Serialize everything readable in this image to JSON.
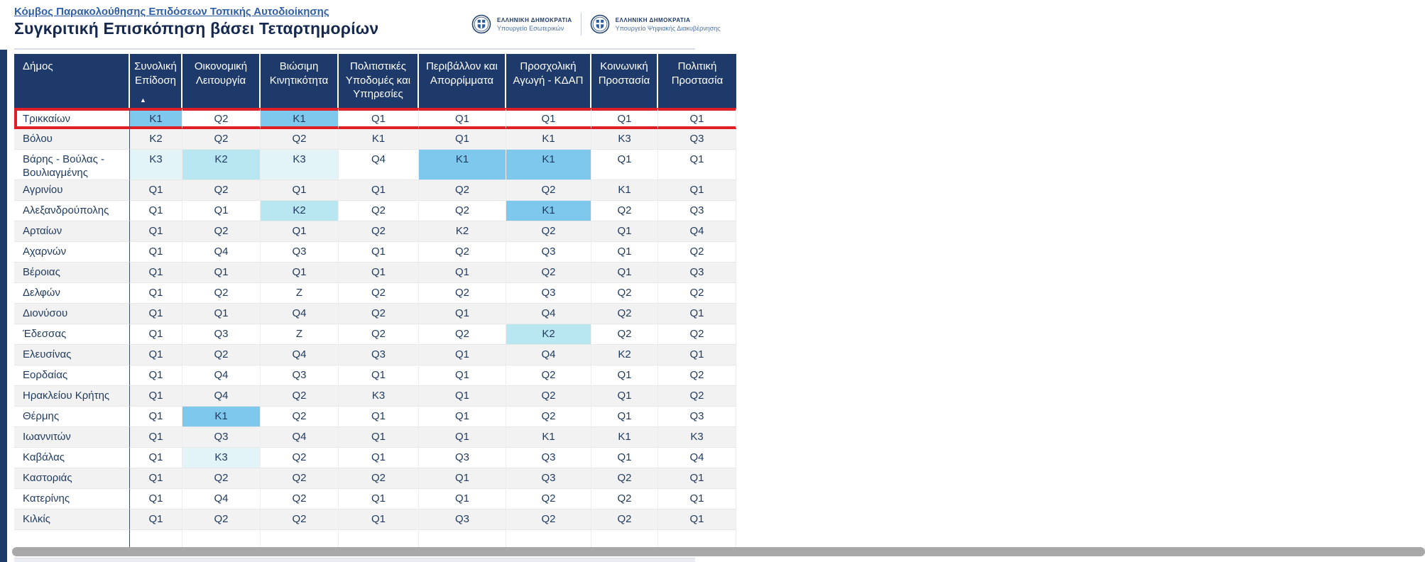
{
  "page": {
    "breadcrumb": "Κόμβος Παρακολούθησης Επιδόσεων Τοπικής Αυτοδιοίκησης",
    "title": "Συγκριτική Επισκόπηση βάσει Τεταρτημορίων"
  },
  "header_logos": [
    {
      "org": "ΕΛΛΗΝΙΚΗ ΔΗΜΟΚΡΑΤΙΑ",
      "ministry": "Υπουργείο Εσωτερικών"
    },
    {
      "org": "ΕΛΛΗΝΙΚΗ ΔΗΜΟΚΡΑΤΙΑ",
      "ministry": "Υπουργείο Ψηφιακής Διακυβέρνησης"
    }
  ],
  "colors": {
    "header_bg": "#1e3a6b",
    "text_navy": "#1f3a5e",
    "link_blue": "#2f5fa7",
    "k1_highlight": "#7dc8ec",
    "k2_highlight": "#b9e7f1",
    "k3_highlight": "#e3f4f9",
    "row_alternate": "#f2f2f2",
    "selected_row_border": "#e01e25",
    "scrollbar": "#a8a8a8"
  },
  "table": {
    "first_column_header": "Δήμος",
    "columns": [
      "Συνολική Επίδοση",
      "Οικονομική Λειτουργία",
      "Βιώσιμη Κινητικότητα",
      "Πολιτιστικές Υποδομές και Υπηρεσίες",
      "Περιβάλλον και Απορρίμματα",
      "Προσχολική Αγωγή - ΚΔΑΠ",
      "Κοινωνική Προστασία",
      "Πολιτική Προστασία"
    ],
    "sort": {
      "column": "Συνολική Επίδοση",
      "column_index": 0,
      "direction": "ascending"
    },
    "highlighted_row": "Τρικκαίων",
    "rows": [
      {
        "name": "Τρικκαίων",
        "highlighted": true,
        "values": [
          "K1",
          "Q2",
          "K1",
          "Q1",
          "Q1",
          "Q1",
          "Q1",
          "Q1"
        ]
      },
      {
        "name": "Βόλου",
        "highlighted": false,
        "values": [
          "K2",
          "Q2",
          "Q2",
          "K1",
          "Q1",
          "K1",
          "K3",
          "Q3"
        ]
      },
      {
        "name": "Βάρης - Βούλας - Βουλιαγμένης",
        "highlighted": false,
        "values": [
          "K3",
          "K2",
          "K3",
          "Q4",
          "K1",
          "K1",
          "Q1",
          "Q1"
        ]
      },
      {
        "name": "Αγρινίου",
        "highlighted": false,
        "values": [
          "Q1",
          "Q2",
          "Q1",
          "Q1",
          "Q2",
          "Q2",
          "K1",
          "Q1"
        ]
      },
      {
        "name": "Αλεξανδρούπολης",
        "highlighted": false,
        "values": [
          "Q1",
          "Q1",
          "K2",
          "Q2",
          "Q2",
          "K1",
          "Q2",
          "Q3"
        ]
      },
      {
        "name": "Αρταίων",
        "highlighted": false,
        "values": [
          "Q1",
          "Q2",
          "Q1",
          "Q2",
          "K2",
          "Q2",
          "Q1",
          "Q4"
        ]
      },
      {
        "name": "Αχαρνών",
        "highlighted": false,
        "values": [
          "Q1",
          "Q4",
          "Q3",
          "Q1",
          "Q2",
          "Q3",
          "Q1",
          "Q2"
        ]
      },
      {
        "name": "Βέροιας",
        "highlighted": false,
        "values": [
          "Q1",
          "Q1",
          "Q1",
          "Q1",
          "Q1",
          "Q2",
          "Q1",
          "Q3"
        ]
      },
      {
        "name": "Δελφών",
        "highlighted": false,
        "values": [
          "Q1",
          "Q2",
          "Z",
          "Q2",
          "Q2",
          "Q3",
          "Q2",
          "Q2"
        ]
      },
      {
        "name": "Διονύσου",
        "highlighted": false,
        "values": [
          "Q1",
          "Q1",
          "Q4",
          "Q2",
          "Q1",
          "Q4",
          "Q2",
          "Q1"
        ]
      },
      {
        "name": "Έδεσσας",
        "highlighted": false,
        "values": [
          "Q1",
          "Q3",
          "Z",
          "Q2",
          "Q2",
          "K2",
          "Q2",
          "Q2"
        ]
      },
      {
        "name": "Ελευσίνας",
        "highlighted": false,
        "values": [
          "Q1",
          "Q2",
          "Q4",
          "Q3",
          "Q1",
          "Q4",
          "K2",
          "Q1"
        ]
      },
      {
        "name": "Εορδαίας",
        "highlighted": false,
        "values": [
          "Q1",
          "Q4",
          "Q3",
          "Q1",
          "Q1",
          "Q2",
          "Q1",
          "Q2"
        ]
      },
      {
        "name": "Ηρακλείου Κρήτης",
        "highlighted": false,
        "values": [
          "Q1",
          "Q4",
          "Q2",
          "K3",
          "Q1",
          "Q2",
          "Q1",
          "Q2"
        ]
      },
      {
        "name": "Θέρμης",
        "highlighted": false,
        "values": [
          "Q1",
          "K1",
          "Q2",
          "Q1",
          "Q1",
          "Q2",
          "Q1",
          "Q3"
        ]
      },
      {
        "name": "Ιωαννιτών",
        "highlighted": false,
        "values": [
          "Q1",
          "Q3",
          "Q4",
          "Q1",
          "Q1",
          "K1",
          "K1",
          "K3"
        ]
      },
      {
        "name": "Καβάλας",
        "highlighted": false,
        "values": [
          "Q1",
          "K3",
          "Q2",
          "Q1",
          "Q3",
          "Q3",
          "Q1",
          "Q4"
        ]
      },
      {
        "name": "Καστοριάς",
        "highlighted": false,
        "values": [
          "Q1",
          "Q2",
          "Q2",
          "Q2",
          "Q1",
          "Q3",
          "Q2",
          "Q1"
        ]
      },
      {
        "name": "Κατερίνης",
        "highlighted": false,
        "values": [
          "Q1",
          "Q4",
          "Q2",
          "Q1",
          "Q1",
          "Q2",
          "Q2",
          "Q1"
        ]
      },
      {
        "name": "Κιλκίς",
        "highlighted": false,
        "values": [
          "Q1",
          "Q2",
          "Q2",
          "Q1",
          "Q3",
          "Q2",
          "Q2",
          "Q1"
        ]
      }
    ]
  }
}
